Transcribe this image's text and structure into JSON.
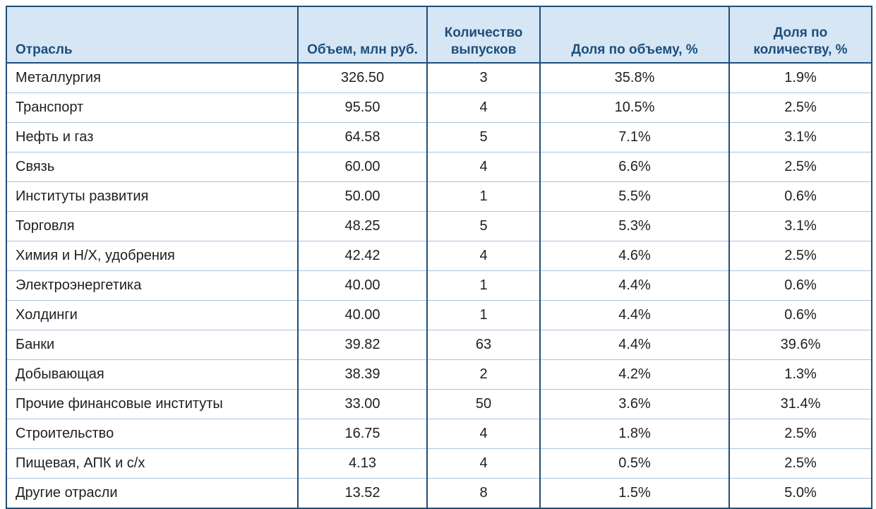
{
  "table": {
    "headers": [
      "Отрасль",
      "Объем, млн руб.",
      "Количество выпусков",
      "Доля по объему, %",
      "Доля по количеству, %"
    ],
    "rows": [
      [
        "Металлургия",
        "326.50",
        "3",
        "35.8%",
        "1.9%"
      ],
      [
        "Транспорт",
        "95.50",
        "4",
        "10.5%",
        "2.5%"
      ],
      [
        "Нефть и газ",
        "64.58",
        "5",
        "7.1%",
        "3.1%"
      ],
      [
        "Связь",
        "60.00",
        "4",
        "6.6%",
        "2.5%"
      ],
      [
        "Институты развития",
        "50.00",
        "1",
        "5.5%",
        "0.6%"
      ],
      [
        "Торговля",
        "48.25",
        "5",
        "5.3%",
        "3.1%"
      ],
      [
        "Химия и Н/Х, удобрения",
        "42.42",
        "4",
        "4.6%",
        "2.5%"
      ],
      [
        "Электроэнергетика",
        "40.00",
        "1",
        "4.4%",
        "0.6%"
      ],
      [
        "Холдинги",
        "40.00",
        "1",
        "4.4%",
        "0.6%"
      ],
      [
        "Банки",
        "39.82",
        "63",
        "4.4%",
        "39.6%"
      ],
      [
        "Добывающая",
        "38.39",
        "2",
        "4.2%",
        "1.3%"
      ],
      [
        "Прочие финансовые институты",
        "33.00",
        "50",
        "3.6%",
        "31.4%"
      ],
      [
        "Строительство",
        "16.75",
        "4",
        "1.8%",
        "2.5%"
      ],
      [
        "Пищевая, АПК и с/х",
        "4.13",
        "4",
        "0.5%",
        "2.5%"
      ],
      [
        "Другие отрасли",
        "13.52",
        "8",
        "1.5%",
        "5.0%"
      ]
    ]
  },
  "colors": {
    "header_bg": "#d6e6f5",
    "header_text": "#1f4e79",
    "border": "#1f4e79",
    "row_divider": "#a9c4de"
  }
}
